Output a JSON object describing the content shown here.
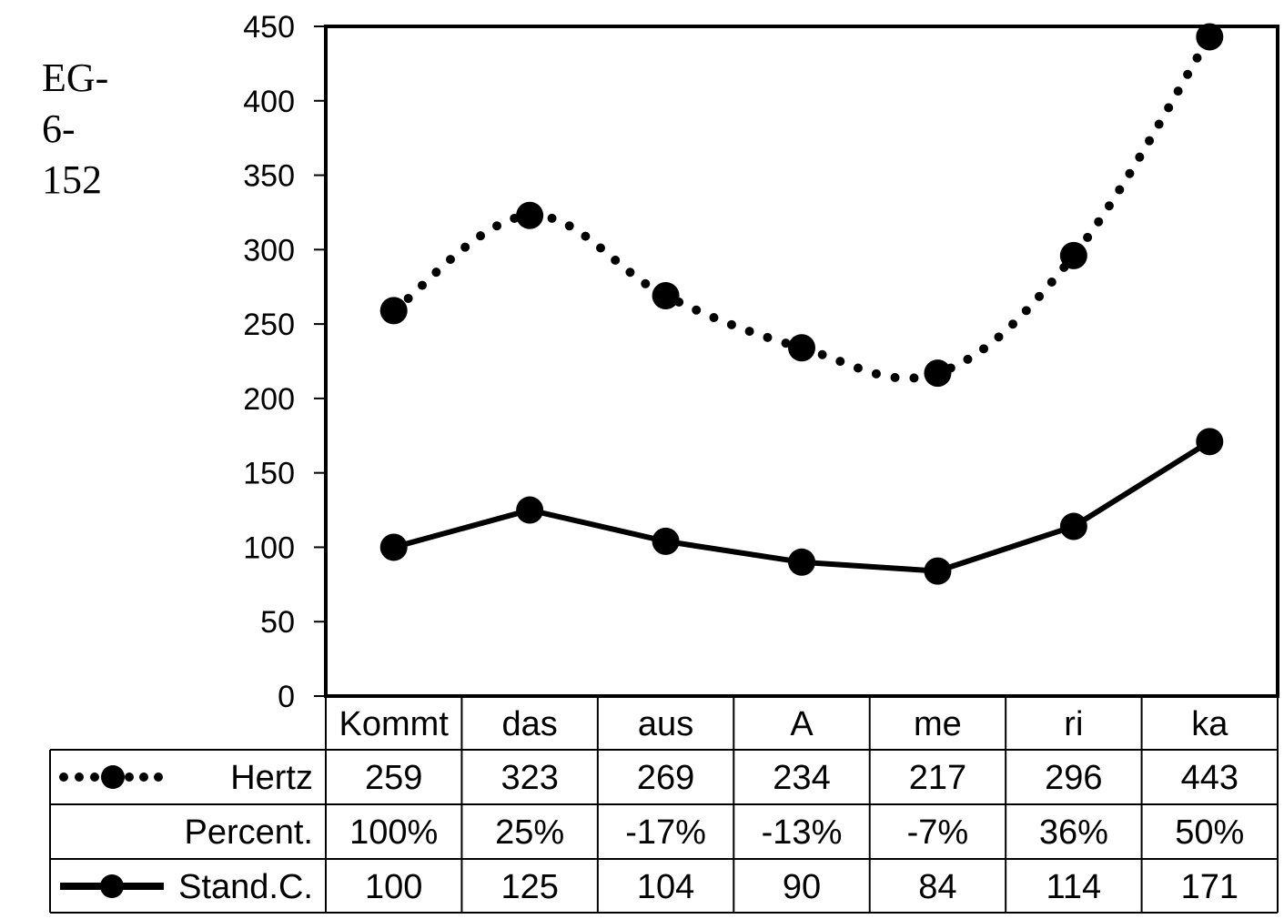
{
  "side_title": [
    "EG-",
    "6-",
    "152"
  ],
  "chart_data": {
    "type": "line",
    "categories": [
      "Kommt",
      "das",
      "aus",
      "A",
      "me",
      "ri",
      "ka"
    ],
    "ylim": [
      0,
      450
    ],
    "yticks": [
      "0",
      "50",
      "100",
      "150",
      "200",
      "250",
      "300",
      "350",
      "400",
      "450"
    ],
    "grid": false,
    "legend_placement": "data-table",
    "series": [
      {
        "name": "Hertz",
        "style": "dotted",
        "values": [
          259,
          323,
          269,
          234,
          217,
          296,
          443
        ]
      },
      {
        "name": "Stand.C.",
        "style": "solid",
        "values": [
          100,
          125,
          104,
          90,
          84,
          114,
          171
        ]
      }
    ],
    "table": {
      "rows": [
        {
          "label": "Hertz",
          "marker": "dotted",
          "cells": [
            "259",
            "323",
            "269",
            "234",
            "217",
            "296",
            "443"
          ]
        },
        {
          "label": "Percent.",
          "marker": "none",
          "cells": [
            "100%",
            "25%",
            "-17%",
            "-13%",
            "-7%",
            "36%",
            "50%"
          ]
        },
        {
          "label": "Stand.C.",
          "marker": "solid",
          "cells": [
            "100",
            "125",
            "104",
            "90",
            "84",
            "114",
            "171"
          ]
        }
      ]
    }
  }
}
